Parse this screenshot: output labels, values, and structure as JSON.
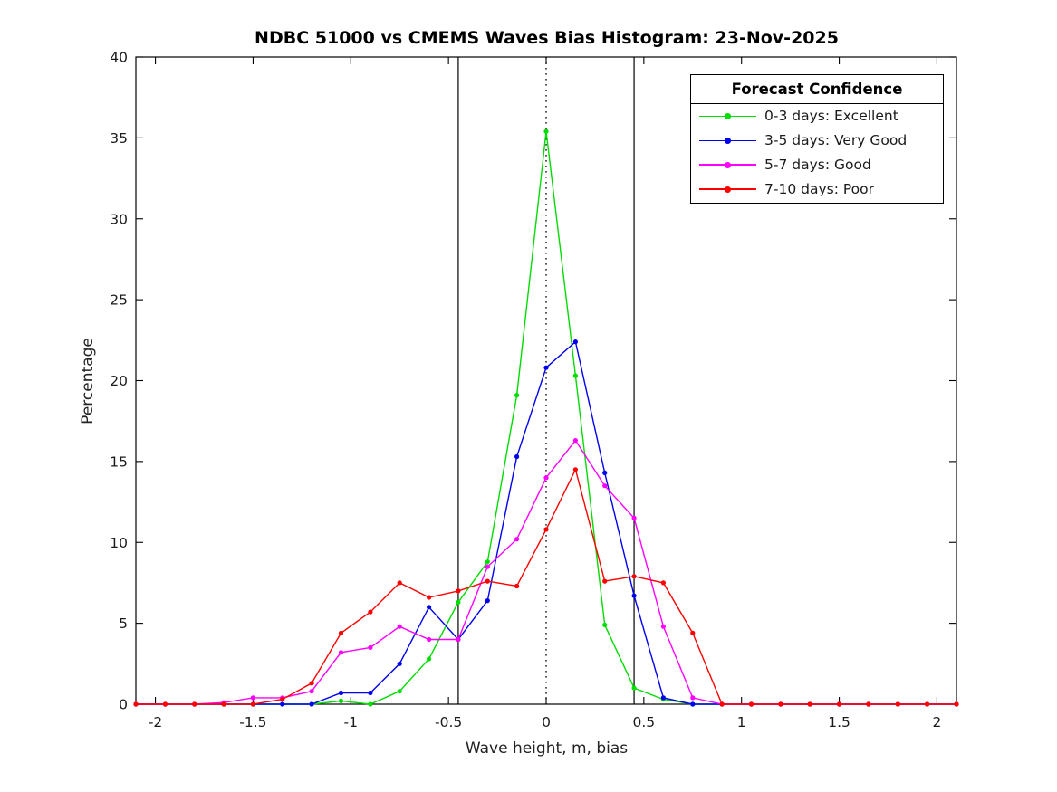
{
  "title": "NDBC 51000 vs CMEMS Waves Bias Histogram: 23-Nov-2025",
  "chart_data": {
    "type": "line",
    "title": "NDBC 51000 vs CMEMS Waves Bias Histogram: 23-Nov-2025",
    "xlabel": "Wave height, m, bias",
    "ylabel": "Percentage",
    "xlim": [
      -2.1,
      2.1
    ],
    "ylim": [
      0,
      40
    ],
    "xticks": [
      -2,
      -1.5,
      -1,
      -0.5,
      0,
      0.5,
      1,
      1.5,
      2
    ],
    "yticks": [
      0,
      5,
      10,
      15,
      20,
      25,
      30,
      35,
      40
    ],
    "grid": false,
    "x": [
      -2.1,
      -1.95,
      -1.8,
      -1.65,
      -1.5,
      -1.35,
      -1.2,
      -1.05,
      -0.9,
      -0.75,
      -0.6,
      -0.45,
      -0.3,
      -0.15,
      0,
      0.15,
      0.3,
      0.45,
      0.6,
      0.75,
      0.9,
      1.05,
      1.2,
      1.35,
      1.5,
      1.65,
      1.8,
      1.95,
      2.1
    ],
    "series": [
      {
        "name": "0-3 days: Excellent",
        "color": "#00dd00",
        "values": [
          0,
          0,
          0,
          0,
          0,
          0,
          0,
          0.2,
          0,
          0.8,
          2.8,
          6.3,
          8.8,
          19.1,
          35.4,
          20.3,
          4.9,
          1.0,
          0.3,
          0,
          0,
          0,
          0,
          0,
          0,
          0,
          0,
          0,
          0
        ]
      },
      {
        "name": "3-5 days: Very Good",
        "color": "#0000ee",
        "values": [
          0,
          0,
          0,
          0,
          0,
          0,
          0,
          0.7,
          0.7,
          2.5,
          6.0,
          4.0,
          6.4,
          15.3,
          20.8,
          22.4,
          14.3,
          6.7,
          0.4,
          0,
          0,
          0,
          0,
          0,
          0,
          0,
          0,
          0,
          0
        ]
      },
      {
        "name": "5-7 days: Good",
        "color": "#ff00ff",
        "values": [
          0,
          0,
          0,
          0.1,
          0.4,
          0.4,
          0.8,
          3.2,
          3.5,
          4.8,
          4.0,
          4.0,
          8.5,
          10.2,
          14.0,
          16.3,
          13.5,
          11.5,
          4.8,
          0.4,
          0,
          0,
          0,
          0,
          0,
          0,
          0,
          0,
          0
        ]
      },
      {
        "name": "7-10 days: Poor",
        "color": "#ff0000",
        "values": [
          0,
          0,
          0,
          0,
          0,
          0.3,
          1.3,
          4.4,
          5.7,
          7.5,
          6.6,
          7.0,
          7.6,
          7.3,
          10.8,
          14.5,
          7.6,
          7.9,
          7.5,
          4.4,
          0,
          0,
          0,
          0,
          0,
          0,
          0,
          0,
          0
        ]
      }
    ],
    "reference_lines": {
      "solid_vertical": [
        -0.45,
        0.45
      ],
      "dotted_vertical": 0
    },
    "legend": {
      "title": "Forecast Confidence",
      "position": "top-right"
    }
  }
}
